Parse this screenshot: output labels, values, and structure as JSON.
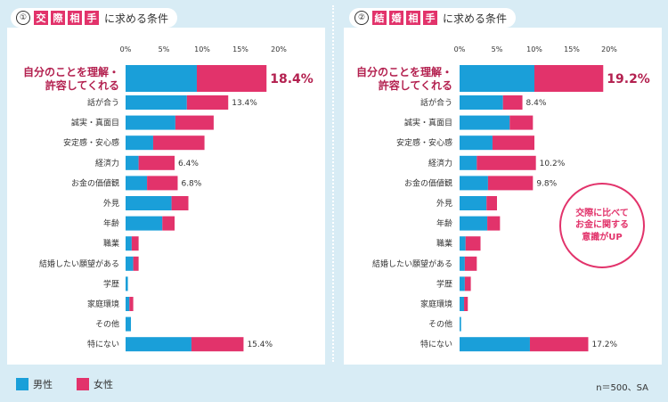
{
  "left": {
    "number": "①",
    "title_chars": [
      "交",
      "際",
      "相",
      "手"
    ],
    "title_suffix": "に求める条件"
  },
  "right": {
    "number": "②",
    "title_chars": [
      "結",
      "婚",
      "相",
      "手"
    ],
    "title_suffix": "に求める条件"
  },
  "legend": {
    "male": "男性",
    "female": "女性"
  },
  "note": "n＝500、SA",
  "callout": "交際に比べて\nお金に関する\n意識がUP",
  "colors": {
    "male": "#1a9fd9",
    "female": "#e2336b",
    "highlight": "#b3204f"
  },
  "chart_data": [
    {
      "type": "bar",
      "stacked": true,
      "orientation": "horizontal",
      "title": "交際相手に求める条件",
      "ticks": [
        "0%",
        "5%",
        "10%",
        "15%",
        "20%"
      ],
      "xlim": [
        0,
        20
      ],
      "categories": [
        "自分のことを理解・\n許容してくれる",
        "話が合う",
        "誠実・真面目",
        "安定感・安心感",
        "経済力",
        "お金の価値観",
        "外見",
        "年齢",
        "職業",
        "結婚したい願望がある",
        "学歴",
        "家庭環境",
        "その他",
        "特にない"
      ],
      "series": [
        {
          "name": "男性",
          "values": [
            9.3,
            8.0,
            6.5,
            3.6,
            1.7,
            2.8,
            6.0,
            4.8,
            0.8,
            1.0,
            0.3,
            0.5,
            0.7,
            8.6
          ]
        },
        {
          "name": "女性",
          "values": [
            9.1,
            5.4,
            5.0,
            6.7,
            4.7,
            4.0,
            2.2,
            1.6,
            0.9,
            0.7,
            0.0,
            0.5,
            0.0,
            6.8
          ]
        }
      ],
      "labels": [
        "18.4%",
        "13.4%",
        "",
        "",
        "6.4%",
        "6.8%",
        "",
        "",
        "",
        "",
        "",
        "",
        "",
        "15.4%"
      ]
    },
    {
      "type": "bar",
      "stacked": true,
      "orientation": "horizontal",
      "title": "結婚相手に求める条件",
      "ticks": [
        "0%",
        "5%",
        "10%",
        "15%",
        "20%"
      ],
      "xlim": [
        0,
        20
      ],
      "categories": [
        "自分のことを理解・\n許容してくれる",
        "話が合う",
        "誠実・真面目",
        "安定感・安心感",
        "経済力",
        "お金の価値観",
        "外見",
        "年齢",
        "職業",
        "結婚したい願望がある",
        "学歴",
        "家庭環境",
        "その他",
        "特にない"
      ],
      "series": [
        {
          "name": "男性",
          "values": [
            10.0,
            5.8,
            6.7,
            4.4,
            2.3,
            3.8,
            3.6,
            3.7,
            0.8,
            0.7,
            0.7,
            0.6,
            0.2,
            9.4
          ]
        },
        {
          "name": "女性",
          "values": [
            9.2,
            2.6,
            3.1,
            5.6,
            7.9,
            6.0,
            1.4,
            1.7,
            2.0,
            1.6,
            0.8,
            0.5,
            0.0,
            7.8
          ]
        }
      ],
      "labels": [
        "19.2%",
        "8.4%",
        "",
        "",
        "10.2%",
        "9.8%",
        "",
        "",
        "",
        "",
        "",
        "",
        "",
        "17.2%"
      ]
    }
  ]
}
